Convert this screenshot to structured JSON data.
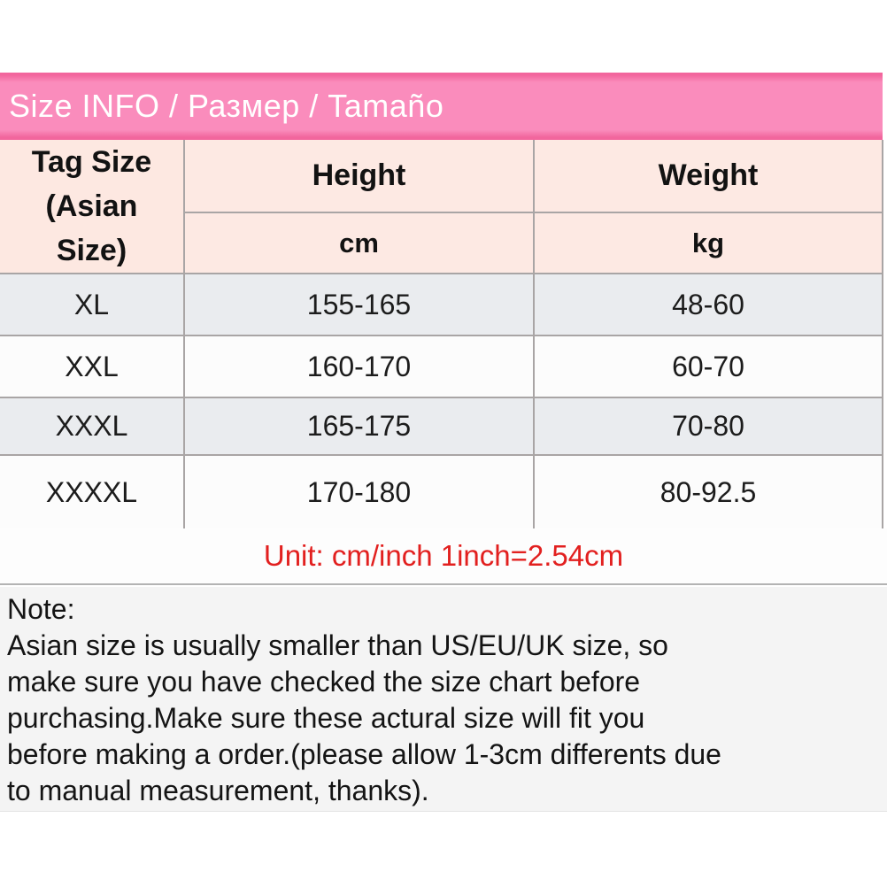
{
  "banner": {
    "title": "Size INFO / Размер / Tamaño",
    "bg_color": "#fa8cbc",
    "edge_color": "#f2669d",
    "text_color": "#ffffff"
  },
  "table": {
    "corner_header_lines": [
      "Tag Size",
      "(Asian",
      "Size)"
    ],
    "column_groups": [
      {
        "label": "Height",
        "unit": "cm"
      },
      {
        "label": "Weight",
        "unit": "kg"
      }
    ],
    "rows": [
      {
        "size": "XL",
        "height_cm": "155-165",
        "weight_kg": "48-60"
      },
      {
        "size": "XXL",
        "height_cm": "160-170",
        "weight_kg": "60-70"
      },
      {
        "size": "XXXL",
        "height_cm": "165-175",
        "weight_kg": "70-80"
      },
      {
        "size": "XXXXL",
        "height_cm": "170-180",
        "weight_kg": "80-92.5"
      }
    ],
    "header_bg": "#fde9e3",
    "row_shade_bg": "#eaecef",
    "row_plain_bg": "#fcfcfc",
    "border_color": "#a9a5a5"
  },
  "unit_note": {
    "text": "Unit: cm/inch 1inch=2.54cm",
    "color": "#e2201f"
  },
  "note": {
    "heading": "Note:",
    "lines": [
      "Asian size is usually smaller than US/EU/UK size, so",
      "make sure you have checked the size chart before",
      "purchasing.Make sure these actural size will fit you",
      "before making a order.(please allow 1-3cm differents due",
      "to manual measurement, thanks)."
    ],
    "bg_color": "#f4f4f4"
  }
}
